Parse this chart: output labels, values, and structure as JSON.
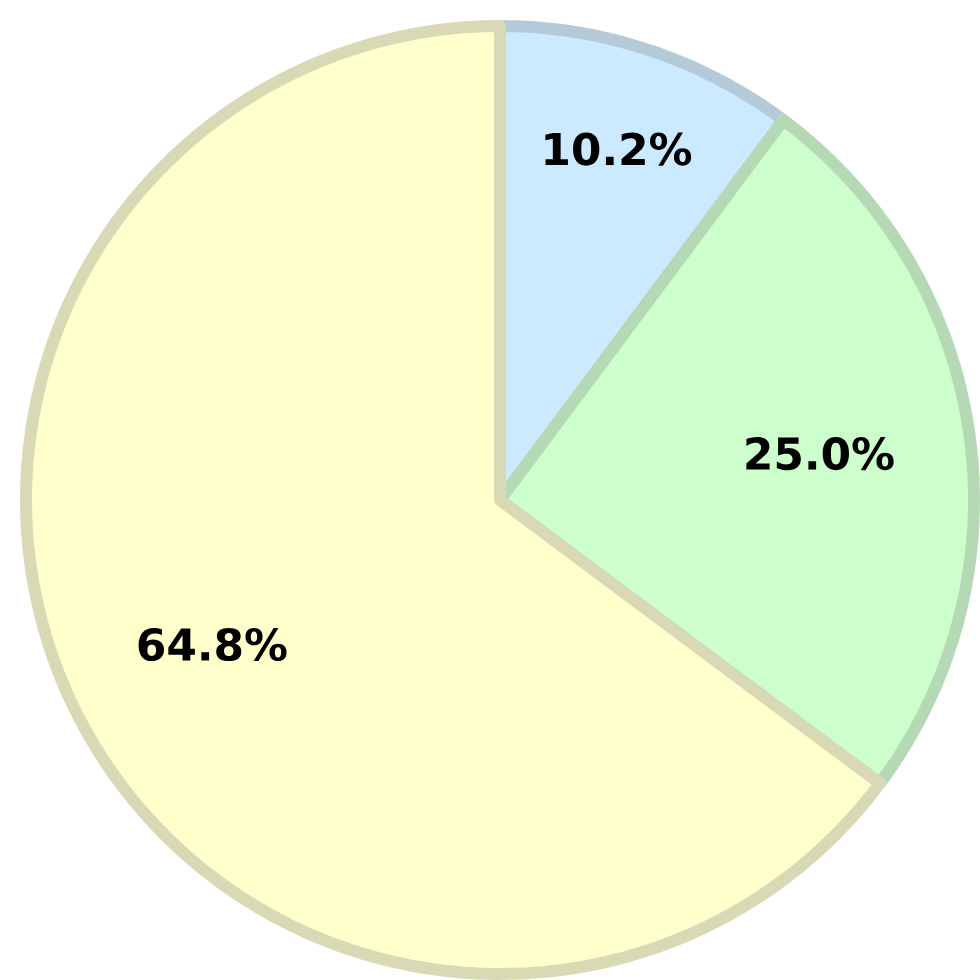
{
  "chart_data": {
    "type": "pie",
    "categories": [
      null,
      null,
      null
    ],
    "values": [
      10.2,
      25.0,
      64.8
    ],
    "colors": [
      "#cceaff",
      "#ccffcc",
      "#ffffcc"
    ],
    "value_labels": [
      "10.2%",
      "25.0%",
      "64.8%"
    ]
  }
}
